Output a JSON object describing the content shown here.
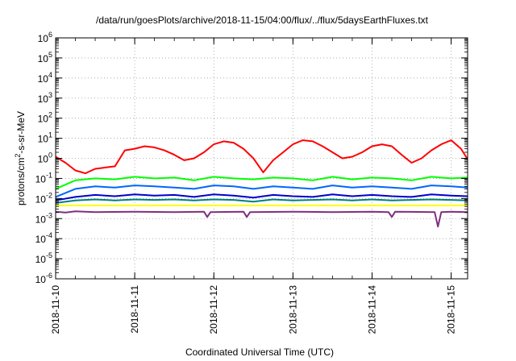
{
  "chart_data": {
    "type": "line",
    "title": "/data/run/goesPlots/archive/2018-11-15/04:00/flux/../flux/5daysEarthFluxes.txt",
    "xlabel": "Coordinated Universal Time (UTC)",
    "ylabel": {
      "base": "protons/cm",
      "sup": "2",
      "rest": "-s-sr-MeV"
    },
    "y_scale": "log",
    "ylim": [
      1e-06,
      1000000.0
    ],
    "xlim": [
      "2018-11-10T00:00",
      "2018-11-15T05:00"
    ],
    "grid": true,
    "x_ticks": [
      "2018-11-10",
      "2018-11-11",
      "2018-11-12",
      "2018-11-13",
      "2018-11-14",
      "2018-11-15"
    ],
    "y_ticks": [
      {
        "base": "10",
        "exp": "-6",
        "value": 1e-06
      },
      {
        "base": "10",
        "exp": "-5",
        "value": 1e-05
      },
      {
        "base": "10",
        "exp": "-4",
        "value": 0.0001
      },
      {
        "base": "10",
        "exp": "-3",
        "value": 0.001
      },
      {
        "base": "10",
        "exp": "-2",
        "value": 0.01
      },
      {
        "base": "10",
        "exp": "-1",
        "value": 0.1
      },
      {
        "base": "10",
        "exp": "0",
        "value": 1
      },
      {
        "base": "10",
        "exp": "1",
        "value": 10
      },
      {
        "base": "10",
        "exp": "2",
        "value": 100
      },
      {
        "base": "10",
        "exp": "3",
        "value": 1000
      },
      {
        "base": "10",
        "exp": "4",
        "value": 10000
      },
      {
        "base": "10",
        "exp": "5",
        "value": 100000
      },
      {
        "base": "10",
        "exp": "6",
        "value": 1000000
      }
    ],
    "series": [
      {
        "color": "#ff0000",
        "x": [
          "2018-11-10T00:00",
          "2018-11-10T03:00",
          "2018-11-10T06:00",
          "2018-11-10T09:00",
          "2018-11-10T12:00",
          "2018-11-10T15:00",
          "2018-11-10T18:00",
          "2018-11-10T21:00",
          "2018-11-11T00:00",
          "2018-11-11T03:00",
          "2018-11-11T06:00",
          "2018-11-11T09:00",
          "2018-11-11T12:00",
          "2018-11-11T15:00",
          "2018-11-11T18:00",
          "2018-11-11T21:00",
          "2018-11-12T00:00",
          "2018-11-12T03:00",
          "2018-11-12T06:00",
          "2018-11-12T09:00",
          "2018-11-12T12:00",
          "2018-11-12T15:00",
          "2018-11-12T18:00",
          "2018-11-12T21:00",
          "2018-11-13T00:00",
          "2018-11-13T03:00",
          "2018-11-13T06:00",
          "2018-11-13T09:00",
          "2018-11-13T12:00",
          "2018-11-13T15:00",
          "2018-11-13T18:00",
          "2018-11-13T21:00",
          "2018-11-14T00:00",
          "2018-11-14T03:00",
          "2018-11-14T06:00",
          "2018-11-14T09:00",
          "2018-11-14T12:00",
          "2018-11-14T15:00",
          "2018-11-14T18:00",
          "2018-11-14T21:00",
          "2018-11-15T00:00",
          "2018-11-15T03:00",
          "2018-11-15T05:00"
        ],
        "values": [
          1.2,
          0.6,
          0.25,
          0.18,
          0.3,
          0.35,
          0.4,
          2.5,
          3.0,
          4.0,
          3.5,
          2.5,
          1.5,
          0.8,
          1.0,
          2.0,
          5.0,
          7.0,
          6.0,
          3.0,
          1.0,
          0.2,
          0.8,
          2.0,
          5.0,
          8.0,
          7.0,
          4.0,
          2.0,
          1.0,
          1.2,
          2.0,
          4.0,
          5.0,
          4.0,
          1.5,
          0.6,
          1.0,
          2.5,
          5.0,
          8.0,
          3.0,
          0.9
        ]
      },
      {
        "color": "#00ff00",
        "x": [
          "2018-11-10T00:00",
          "2018-11-10T06:00",
          "2018-11-10T12:00",
          "2018-11-10T18:00",
          "2018-11-11T00:00",
          "2018-11-11T06:00",
          "2018-11-11T12:00",
          "2018-11-11T18:00",
          "2018-11-12T00:00",
          "2018-11-12T06:00",
          "2018-11-12T12:00",
          "2018-11-12T18:00",
          "2018-11-13T00:00",
          "2018-11-13T06:00",
          "2018-11-13T12:00",
          "2018-11-13T18:00",
          "2018-11-14T00:00",
          "2018-11-14T06:00",
          "2018-11-14T12:00",
          "2018-11-14T18:00",
          "2018-11-15T00:00",
          "2018-11-15T05:00"
        ],
        "values": [
          0.03,
          0.08,
          0.1,
          0.09,
          0.12,
          0.1,
          0.11,
          0.08,
          0.12,
          0.1,
          0.09,
          0.11,
          0.1,
          0.08,
          0.12,
          0.09,
          0.11,
          0.1,
          0.08,
          0.12,
          0.1,
          0.11
        ]
      },
      {
        "color": "#0066ff",
        "x": [
          "2018-11-10T00:00",
          "2018-11-10T06:00",
          "2018-11-10T12:00",
          "2018-11-10T18:00",
          "2018-11-11T00:00",
          "2018-11-11T06:00",
          "2018-11-11T12:00",
          "2018-11-11T18:00",
          "2018-11-12T00:00",
          "2018-11-12T06:00",
          "2018-11-12T12:00",
          "2018-11-12T18:00",
          "2018-11-13T00:00",
          "2018-11-13T06:00",
          "2018-11-13T12:00",
          "2018-11-13T18:00",
          "2018-11-14T00:00",
          "2018-11-14T06:00",
          "2018-11-14T12:00",
          "2018-11-14T18:00",
          "2018-11-15T00:00",
          "2018-11-15T05:00"
        ],
        "values": [
          0.012,
          0.03,
          0.04,
          0.035,
          0.045,
          0.04,
          0.035,
          0.03,
          0.045,
          0.04,
          0.03,
          0.04,
          0.035,
          0.03,
          0.045,
          0.035,
          0.04,
          0.035,
          0.03,
          0.045,
          0.04,
          0.035
        ]
      },
      {
        "color": "#0000cc",
        "x": [
          "2018-11-10T00:00",
          "2018-11-10T06:00",
          "2018-11-10T12:00",
          "2018-11-10T18:00",
          "2018-11-11T00:00",
          "2018-11-11T06:00",
          "2018-11-11T12:00",
          "2018-11-11T18:00",
          "2018-11-12T00:00",
          "2018-11-12T06:00",
          "2018-11-12T12:00",
          "2018-11-12T18:00",
          "2018-11-13T00:00",
          "2018-11-13T06:00",
          "2018-11-13T12:00",
          "2018-11-13T18:00",
          "2018-11-14T00:00",
          "2018-11-14T06:00",
          "2018-11-14T12:00",
          "2018-11-14T18:00",
          "2018-11-15T00:00",
          "2018-11-15T05:00"
        ],
        "values": [
          0.008,
          0.012,
          0.015,
          0.013,
          0.016,
          0.014,
          0.015,
          0.012,
          0.016,
          0.014,
          0.011,
          0.015,
          0.013,
          0.012,
          0.016,
          0.013,
          0.015,
          0.013,
          0.012,
          0.016,
          0.014,
          0.013
        ]
      },
      {
        "color": "#008080",
        "x": [
          "2018-11-10T00:00",
          "2018-11-10T06:00",
          "2018-11-10T12:00",
          "2018-11-10T18:00",
          "2018-11-11T00:00",
          "2018-11-11T06:00",
          "2018-11-11T12:00",
          "2018-11-11T18:00",
          "2018-11-12T00:00",
          "2018-11-12T06:00",
          "2018-11-12T12:00",
          "2018-11-12T18:00",
          "2018-11-13T00:00",
          "2018-11-13T06:00",
          "2018-11-13T12:00",
          "2018-11-13T18:00",
          "2018-11-14T00:00",
          "2018-11-14T06:00",
          "2018-11-14T12:00",
          "2018-11-14T18:00",
          "2018-11-15T00:00",
          "2018-11-15T05:00"
        ],
        "values": [
          0.006,
          0.008,
          0.009,
          0.008,
          0.009,
          0.0085,
          0.009,
          0.008,
          0.009,
          0.0085,
          0.007,
          0.009,
          0.008,
          0.0085,
          0.009,
          0.008,
          0.009,
          0.008,
          0.0085,
          0.009,
          0.0085,
          0.008
        ]
      },
      {
        "color": "#ffff00",
        "x": [
          "2018-11-10T00:00",
          "2018-11-11T00:00",
          "2018-11-12T00:00",
          "2018-11-13T00:00",
          "2018-11-14T00:00",
          "2018-11-15T00:00",
          "2018-11-15T05:00"
        ],
        "values": [
          0.0045,
          0.0045,
          0.0045,
          0.0045,
          0.0045,
          0.0045,
          0.0045
        ]
      },
      {
        "color": "#7f2f7f",
        "x": [
          "2018-11-10T00:00",
          "2018-11-10T03:00",
          "2018-11-10T06:00",
          "2018-11-10T12:00",
          "2018-11-11T00:00",
          "2018-11-11T12:00",
          "2018-11-11T21:00",
          "2018-11-11T22:00",
          "2018-11-11T23:00",
          "2018-11-12T09:00",
          "2018-11-12T10:00",
          "2018-11-12T11:00",
          "2018-11-13T00:00",
          "2018-11-13T12:00",
          "2018-11-14T00:00",
          "2018-11-14T05:00",
          "2018-11-14T06:00",
          "2018-11-14T07:00",
          "2018-11-14T19:00",
          "2018-11-14T20:00",
          "2018-11-14T21:00",
          "2018-11-15T00:00",
          "2018-11-15T05:00"
        ],
        "values": [
          0.0022,
          0.002,
          0.0023,
          0.0021,
          0.0022,
          0.0021,
          0.0022,
          0.0012,
          0.0021,
          0.0022,
          0.0012,
          0.0021,
          0.0022,
          0.0021,
          0.0022,
          0.0021,
          0.0012,
          0.0022,
          0.0021,
          0.0004,
          0.0021,
          0.0022,
          0.0021
        ]
      }
    ]
  }
}
